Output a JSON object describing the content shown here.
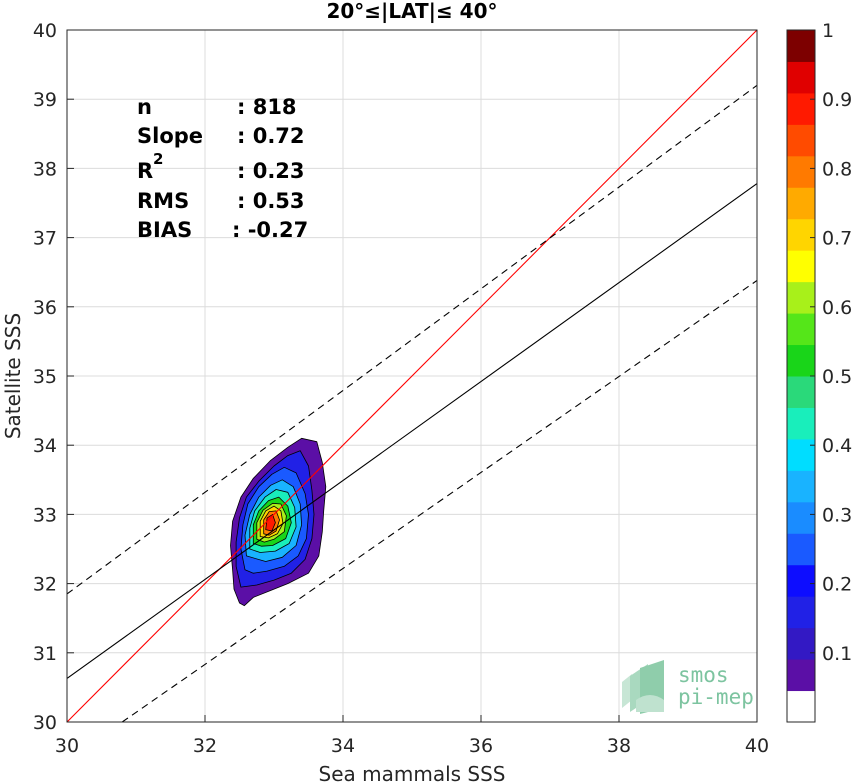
{
  "chart_data": {
    "type": "scatter",
    "title": "20°≤|LAT|≤ 40°",
    "xlabel": "Sea mammals SSS",
    "ylabel": "Satellite SSS",
    "xlim": [
      30,
      40
    ],
    "ylim": [
      30,
      40
    ],
    "xticks": [
      "30",
      "32",
      "34",
      "36",
      "38",
      "40"
    ],
    "yticks": [
      "30",
      "31",
      "32",
      "33",
      "34",
      "35",
      "36",
      "37",
      "38",
      "39",
      "40"
    ],
    "grid": true,
    "stats": [
      {
        "label": "n",
        "value": ": 818"
      },
      {
        "label": "Slope",
        "value": ": 0.72"
      },
      {
        "label": "R",
        "sup": "2",
        "value": ": 0.23"
      },
      {
        "label": "RMS",
        "value": ": 0.53"
      },
      {
        "label": "BIAS",
        "value": ": -0.27"
      }
    ],
    "reference_lines": [
      {
        "name": "1:1",
        "color": "#ff0000",
        "style": "solid",
        "points": [
          [
            30,
            30
          ],
          [
            40,
            40
          ]
        ]
      },
      {
        "name": "fit",
        "color": "#000000",
        "style": "solid",
        "points": [
          [
            30,
            30.63
          ],
          [
            40,
            37.78
          ]
        ]
      },
      {
        "name": "fit_upper",
        "color": "#000000",
        "style": "dashed",
        "points": [
          [
            30,
            31.85
          ],
          [
            40,
            39.2
          ]
        ]
      },
      {
        "name": "fit_lower",
        "color": "#000000",
        "style": "dashed",
        "points": [
          [
            30.8,
            30
          ],
          [
            40,
            36.38
          ]
        ]
      }
    ],
    "density_contours": {
      "center": [
        33.0,
        32.9
      ],
      "levels": [
        {
          "level": 0.05,
          "points": [
            [
              32.5,
              31.72
            ],
            [
              32.42,
              31.92
            ],
            [
              32.4,
              32.2
            ],
            [
              32.37,
              32.55
            ],
            [
              32.4,
              32.9
            ],
            [
              32.52,
              33.25
            ],
            [
              32.7,
              33.52
            ],
            [
              32.95,
              33.78
            ],
            [
              33.2,
              33.97
            ],
            [
              33.4,
              34.1
            ],
            [
              33.62,
              34.05
            ],
            [
              33.7,
              33.75
            ],
            [
              33.75,
              33.4
            ],
            [
              33.72,
              33.05
            ],
            [
              33.7,
              32.75
            ],
            [
              33.65,
              32.4
            ],
            [
              33.5,
              32.15
            ],
            [
              33.2,
              32.0
            ],
            [
              32.95,
              31.9
            ],
            [
              32.7,
              31.8
            ],
            [
              32.57,
              31.68
            ]
          ]
        },
        {
          "level": 0.15,
          "points": [
            [
              32.52,
              31.95
            ],
            [
              32.45,
              32.25
            ],
            [
              32.45,
              32.6
            ],
            [
              32.5,
              32.95
            ],
            [
              32.6,
              33.25
            ],
            [
              32.78,
              33.48
            ],
            [
              33.0,
              33.7
            ],
            [
              33.2,
              33.85
            ],
            [
              33.38,
              33.92
            ],
            [
              33.5,
              33.7
            ],
            [
              33.55,
              33.35
            ],
            [
              33.58,
              33.0
            ],
            [
              33.55,
              32.65
            ],
            [
              33.45,
              32.35
            ],
            [
              33.25,
              32.15
            ],
            [
              33.0,
              32.05
            ],
            [
              32.75,
              31.98
            ]
          ]
        },
        {
          "level": 0.25,
          "points": [
            [
              32.58,
              32.2
            ],
            [
              32.52,
              32.5
            ],
            [
              32.55,
              32.85
            ],
            [
              32.62,
              33.15
            ],
            [
              32.78,
              33.4
            ],
            [
              32.97,
              33.58
            ],
            [
              33.15,
              33.68
            ],
            [
              33.32,
              33.6
            ],
            [
              33.45,
              33.3
            ],
            [
              33.5,
              33.0
            ],
            [
              33.47,
              32.65
            ],
            [
              33.35,
              32.4
            ],
            [
              33.15,
              32.25
            ],
            [
              32.9,
              32.18
            ],
            [
              32.7,
              32.15
            ]
          ]
        },
        {
          "level": 0.35,
          "points": [
            [
              32.6,
              32.4
            ],
            [
              32.58,
              32.7
            ],
            [
              32.65,
              33.0
            ],
            [
              32.78,
              33.25
            ],
            [
              32.95,
              33.42
            ],
            [
              33.12,
              33.5
            ],
            [
              33.28,
              33.4
            ],
            [
              33.38,
              33.15
            ],
            [
              33.4,
              32.85
            ],
            [
              33.32,
              32.55
            ],
            [
              33.12,
              32.38
            ],
            [
              32.88,
              32.32
            ]
          ]
        },
        {
          "level": 0.45,
          "points": [
            [
              32.65,
              32.5
            ],
            [
              32.65,
              32.8
            ],
            [
              32.72,
              33.05
            ],
            [
              32.87,
              33.25
            ],
            [
              33.03,
              33.36
            ],
            [
              33.2,
              33.32
            ],
            [
              33.3,
              33.1
            ],
            [
              33.32,
              32.82
            ],
            [
              33.22,
              32.58
            ],
            [
              33.02,
              32.47
            ],
            [
              32.8,
              32.45
            ]
          ]
        },
        {
          "level": 0.55,
          "points": [
            [
              32.7,
              32.58
            ],
            [
              32.7,
              32.85
            ],
            [
              32.78,
              33.05
            ],
            [
              32.92,
              33.2
            ],
            [
              33.07,
              33.25
            ],
            [
              33.2,
              33.12
            ],
            [
              33.25,
              32.88
            ],
            [
              33.17,
              32.65
            ],
            [
              32.98,
              32.55
            ],
            [
              32.82,
              32.54
            ]
          ]
        },
        {
          "level": 0.65,
          "points": [
            [
              32.75,
              32.64
            ],
            [
              32.75,
              32.88
            ],
            [
              32.84,
              33.06
            ],
            [
              32.98,
              33.16
            ],
            [
              33.1,
              33.15
            ],
            [
              33.18,
              32.98
            ],
            [
              33.15,
              32.75
            ],
            [
              33.0,
              32.64
            ],
            [
              32.86,
              32.6
            ]
          ]
        },
        {
          "level": 0.75,
          "points": [
            [
              32.8,
              32.68
            ],
            [
              32.8,
              32.9
            ],
            [
              32.88,
              33.05
            ],
            [
              33.0,
              33.12
            ],
            [
              33.1,
              33.05
            ],
            [
              33.13,
              32.87
            ],
            [
              33.05,
              32.72
            ],
            [
              32.92,
              32.66
            ]
          ]
        },
        {
          "level": 0.85,
          "points": [
            [
              32.85,
              32.72
            ],
            [
              32.85,
              32.92
            ],
            [
              32.93,
              33.04
            ],
            [
              33.03,
              33.05
            ],
            [
              33.08,
              32.92
            ],
            [
              33.03,
              32.76
            ],
            [
              32.93,
              32.7
            ]
          ]
        },
        {
          "level": 0.95,
          "points": [
            [
              32.88,
              32.78
            ],
            [
              32.9,
              32.95
            ],
            [
              32.98,
              33.0
            ],
            [
              33.02,
              32.88
            ],
            [
              32.97,
              32.76
            ]
          ]
        }
      ]
    },
    "colorbar": {
      "ticks": [
        "0.1",
        "0.2",
        "0.3",
        "0.4",
        "0.5",
        "0.6",
        "0.7",
        "0.8",
        "0.9",
        "1"
      ],
      "range": [
        0,
        1
      ],
      "colors": [
        "#ffffff",
        "#5b0fa6",
        "#3319c4",
        "#2121e6",
        "#0d0dff",
        "#1a5aff",
        "#1a8cff",
        "#19b3ff",
        "#00ddff",
        "#19eebb",
        "#2ad97a",
        "#19d519",
        "#55e619",
        "#a8f01a",
        "#ffff00",
        "#ffd500",
        "#ffaa00",
        "#ff7a00",
        "#ff4b00",
        "#ff1a00",
        "#e00000",
        "#7d0000"
      ]
    }
  },
  "watermark": {
    "line1": "smos",
    "line2": "pi-mep"
  }
}
